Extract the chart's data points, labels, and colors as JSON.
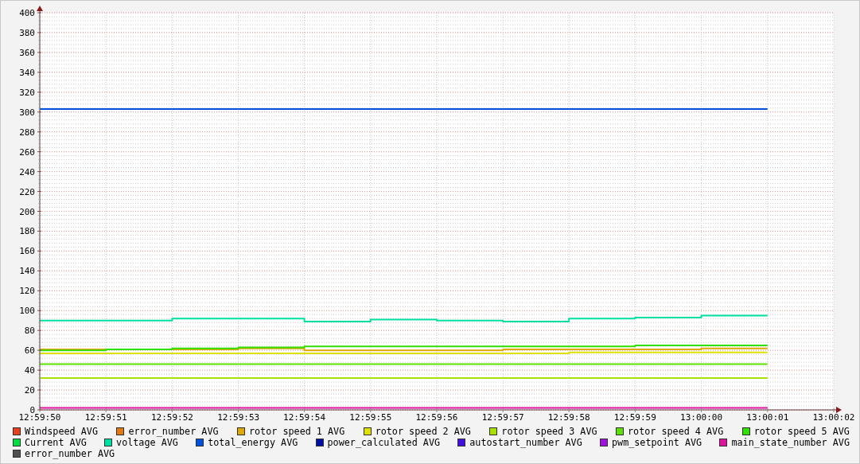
{
  "chart_data": {
    "type": "step",
    "x": [
      12.997222,
      12.9975,
      12.997778,
      12.998056,
      12.998333,
      12.998611,
      12.998889,
      12.999167,
      12.999444,
      12.999722,
      13,
      13.000278
    ],
    "xlim": [
      12.997222,
      13.000556
    ],
    "xticks": [
      {
        "value": 12.997222,
        "label": "12:59:50"
      },
      {
        "value": 12.9975,
        "label": "12:59:51"
      },
      {
        "value": 12.997778,
        "label": "12:59:52"
      },
      {
        "value": 12.998056,
        "label": "12:59:53"
      },
      {
        "value": 12.998333,
        "label": "12:59:54"
      },
      {
        "value": 12.998611,
        "label": "12:59:55"
      },
      {
        "value": 12.998889,
        "label": "12:59:56"
      },
      {
        "value": 12.999167,
        "label": "12:59:57"
      },
      {
        "value": 12.999444,
        "label": "12:59:58"
      },
      {
        "value": 12.999722,
        "label": "12:59:59"
      },
      {
        "value": 13,
        "label": "13:00:00"
      },
      {
        "value": 13.000278,
        "label": "13:00:01"
      },
      {
        "value": 13.000556,
        "label": "13:00:02"
      }
    ],
    "ylim": [
      0,
      400
    ],
    "yticks": [
      0,
      {
        "value": 4,
        "label": null
      },
      {
        "value": 8,
        "label": null
      },
      {
        "value": 12,
        "label": null
      },
      {
        "value": 16,
        "label": null
      },
      20,
      {
        "value": 24,
        "label": null
      },
      {
        "value": 28,
        "label": null
      },
      {
        "value": 32,
        "label": null
      },
      {
        "value": 36,
        "label": null
      },
      40,
      {
        "value": 44,
        "label": null
      },
      {
        "value": 48,
        "label": null
      },
      {
        "value": 52,
        "label": null
      },
      {
        "value": 56,
        "label": null
      },
      60,
      {
        "value": 64,
        "label": null
      },
      {
        "value": 68,
        "label": null
      },
      {
        "value": 72,
        "label": null
      },
      {
        "value": 76,
        "label": null
      },
      80,
      {
        "value": 84,
        "label": null
      },
      {
        "value": 88,
        "label": null
      },
      {
        "value": 92,
        "label": null
      },
      {
        "value": 96,
        "label": null
      },
      100,
      {
        "value": 104,
        "label": null
      },
      {
        "value": 108,
        "label": null
      },
      {
        "value": 112,
        "label": null
      },
      {
        "value": 116,
        "label": null
      },
      120,
      {
        "value": 124,
        "label": null
      },
      {
        "value": 128,
        "label": null
      },
      {
        "value": 132,
        "label": null
      },
      {
        "value": 136,
        "label": null
      },
      140,
      {
        "value": 144,
        "label": null
      },
      {
        "value": 148,
        "label": null
      },
      {
        "value": 152,
        "label": null
      },
      {
        "value": 156,
        "label": null
      },
      160,
      {
        "value": 164,
        "label": null
      },
      {
        "value": 168,
        "label": null
      },
      {
        "value": 172,
        "label": null
      },
      {
        "value": 176,
        "label": null
      },
      180,
      {
        "value": 184,
        "label": null
      },
      {
        "value": 188,
        "label": null
      },
      {
        "value": 192,
        "label": null
      },
      {
        "value": 196,
        "label": null
      },
      200,
      {
        "value": 204,
        "label": null
      },
      {
        "value": 208,
        "label": null
      },
      {
        "value": 212,
        "label": null
      },
      {
        "value": 216,
        "label": null
      },
      220,
      {
        "value": 224,
        "label": null
      },
      {
        "value": 228,
        "label": null
      },
      {
        "value": 232,
        "label": null
      },
      {
        "value": 236,
        "label": null
      },
      240,
      {
        "value": 244,
        "label": null
      },
      {
        "value": 248,
        "label": null
      },
      {
        "value": 252,
        "label": null
      },
      {
        "value": 256,
        "label": null
      },
      260,
      {
        "value": 264,
        "label": null
      },
      {
        "value": 268,
        "label": null
      },
      {
        "value": 272,
        "label": null
      },
      {
        "value": 276,
        "label": null
      },
      280,
      {
        "value": 284,
        "label": null
      },
      {
        "value": 288,
        "label": null
      },
      {
        "value": 292,
        "label": null
      },
      {
        "value": 296,
        "label": null
      },
      300,
      {
        "value": 304,
        "label": null
      },
      {
        "value": 308,
        "label": null
      },
      {
        "value": 312,
        "label": null
      },
      {
        "value": 316,
        "label": null
      },
      320,
      {
        "value": 324,
        "label": null
      },
      {
        "value": 328,
        "label": null
      },
      {
        "value": 332,
        "label": null
      },
      {
        "value": 336,
        "label": null
      },
      340,
      {
        "value": 344,
        "label": null
      },
      {
        "value": 348,
        "label": null
      },
      {
        "value": 352,
        "label": null
      },
      {
        "value": 356,
        "label": null
      },
      360,
      {
        "value": 364,
        "label": null
      },
      {
        "value": 368,
        "label": null
      },
      {
        "value": 372,
        "label": null
      },
      {
        "value": 376,
        "label": null
      },
      380,
      {
        "value": 384,
        "label": null
      },
      {
        "value": 388,
        "label": null
      },
      {
        "value": 392,
        "label": null
      },
      {
        "value": 396,
        "label": null
      },
      400
    ],
    "grid": true,
    "legend": "bottom",
    "series": [
      {
        "name": "Windspeed AVG",
        "color": "#e8401c",
        "values": [
          null,
          null,
          null,
          null,
          null,
          null,
          null,
          null,
          null,
          null,
          null,
          null
        ]
      },
      {
        "name": "error_number AVG",
        "color": "#e07a10",
        "values": [
          null,
          null,
          null,
          null,
          null,
          null,
          null,
          null,
          null,
          null,
          null,
          null
        ]
      },
      {
        "name": "rotor speed 1 AVG",
        "color": "#e0a800",
        "values": [
          61,
          61,
          61,
          62,
          60,
          60,
          60,
          61,
          61,
          61,
          62,
          62
        ]
      },
      {
        "name": "rotor speed 2 AVG",
        "color": "#e0e000",
        "values": [
          57,
          57,
          57,
          57,
          57,
          57,
          57,
          57,
          58,
          58,
          58,
          58
        ]
      },
      {
        "name": "rotor speed 3 AVG",
        "color": "#a8e000",
        "values": [
          32,
          32,
          32,
          32,
          32,
          32,
          32,
          32,
          32,
          32,
          32,
          32
        ]
      },
      {
        "name": "rotor speed 4 AVG",
        "color": "#60e000",
        "values": [
          46,
          46,
          46,
          46,
          46,
          46,
          46,
          46,
          46,
          46,
          46,
          46
        ]
      },
      {
        "name": "rotor speed 5 AVG",
        "color": "#30e000",
        "values": [
          60,
          61,
          62,
          63,
          64,
          64,
          64,
          64,
          64,
          65,
          65,
          65
        ]
      },
      {
        "name": "Current AVG",
        "color": "#00e040",
        "values": [
          null,
          null,
          null,
          null,
          null,
          null,
          null,
          null,
          null,
          null,
          null,
          null
        ]
      },
      {
        "name": "voltage AVG",
        "color": "#00e0a0",
        "values": [
          90,
          90,
          92,
          92,
          89,
          91,
          90,
          89,
          92,
          93,
          95,
          95
        ]
      },
      {
        "name": "total_energy AVG",
        "color": "#0050e0",
        "values": [
          303,
          303,
          303,
          303,
          303,
          303,
          303,
          303,
          303,
          303,
          303,
          303
        ]
      },
      {
        "name": "power_calculated AVG",
        "color": "#0010a0",
        "values": [
          null,
          null,
          null,
          null,
          null,
          null,
          null,
          null,
          null,
          null,
          null,
          null
        ]
      },
      {
        "name": "autostart_number AVG",
        "color": "#4010e0",
        "values": [
          null,
          null,
          null,
          null,
          null,
          null,
          null,
          null,
          null,
          null,
          null,
          null
        ]
      },
      {
        "name": "pwm_setpoint AVG",
        "color": "#a010e0",
        "values": [
          null,
          null,
          null,
          null,
          null,
          null,
          null,
          null,
          null,
          null,
          null,
          null
        ]
      },
      {
        "name": "main_state_number AVG",
        "color": "#e010a0",
        "values": [
          2,
          2,
          2,
          2,
          2,
          2,
          2,
          2,
          2,
          2,
          2,
          2
        ]
      },
      {
        "name": "error_number AVG",
        "color": "#505050",
        "values": [
          null,
          null,
          null,
          null,
          null,
          null,
          null,
          null,
          null,
          null,
          null,
          null
        ]
      }
    ]
  }
}
